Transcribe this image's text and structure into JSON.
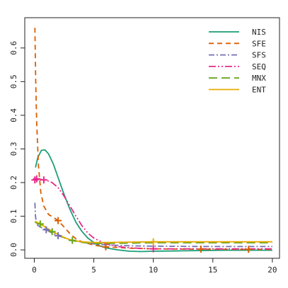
{
  "chart_data": {
    "type": "line",
    "title": "",
    "xlabel": "",
    "ylabel": "",
    "xlim": [
      -0.8,
      20.6
    ],
    "ylim": [
      -0.025,
      0.69
    ],
    "x_ticks": [
      0,
      5,
      10,
      15,
      20
    ],
    "y_ticks": [
      0.0,
      0.1,
      0.2,
      0.3,
      0.4,
      0.5,
      0.6
    ],
    "x_tick_labels": [
      "0",
      "5",
      "10",
      "15",
      "20"
    ],
    "y_tick_labels": [
      "0.0",
      "0.1",
      "0.2",
      "0.3",
      "0.4",
      "0.5",
      "0.6"
    ],
    "grid": false,
    "legend_position": "top-right",
    "series": [
      {
        "name": "NIS",
        "color": "#1b9e77",
        "dash": "solid",
        "points": [
          [
            0.1,
            0.245
          ],
          [
            0.3,
            0.275
          ],
          [
            0.6,
            0.296
          ],
          [
            0.9,
            0.297
          ],
          [
            1.2,
            0.285
          ],
          [
            1.6,
            0.255
          ],
          [
            2.0,
            0.215
          ],
          [
            2.5,
            0.165
          ],
          [
            3.0,
            0.12
          ],
          [
            3.5,
            0.082
          ],
          [
            4.0,
            0.055
          ],
          [
            4.5,
            0.035
          ],
          [
            5.0,
            0.022
          ],
          [
            5.5,
            0.012
          ],
          [
            6.0,
            0.006
          ],
          [
            7.0,
            0.0
          ],
          [
            8.0,
            -0.004
          ],
          [
            9.0,
            -0.005
          ],
          [
            10.0,
            -0.004
          ],
          [
            12.0,
            -0.003
          ],
          [
            14.0,
            -0.002
          ],
          [
            16.0,
            -0.001
          ],
          [
            18.0,
            -0.001
          ],
          [
            20.0,
            -0.001
          ]
        ],
        "markers": []
      },
      {
        "name": "SFE",
        "color": "#d95f02",
        "dash": "7,5",
        "points": [
          [
            0.05,
            0.66
          ],
          [
            0.12,
            0.5
          ],
          [
            0.2,
            0.38
          ],
          [
            0.35,
            0.25
          ],
          [
            0.55,
            0.17
          ],
          [
            0.8,
            0.13
          ],
          [
            1.2,
            0.105
          ],
          [
            1.6,
            0.097
          ],
          [
            2.0,
            0.087
          ],
          [
            2.5,
            0.068
          ],
          [
            3.0,
            0.048
          ],
          [
            3.5,
            0.033
          ],
          [
            4.0,
            0.024
          ],
          [
            5.0,
            0.014
          ],
          [
            6.0,
            0.009
          ],
          [
            8.0,
            0.005
          ],
          [
            10.0,
            0.003
          ],
          [
            14.0,
            0.002
          ],
          [
            18.0,
            0.0015
          ],
          [
            20.0,
            0.0015
          ]
        ],
        "markers": [
          [
            2.0,
            0.087
          ],
          [
            6.0,
            0.009
          ],
          [
            14.0,
            0.002
          ],
          [
            18.0,
            0.0015
          ]
        ]
      },
      {
        "name": "SFS",
        "color": "#7570b3",
        "dash": "8,3,2,3",
        "points": [
          [
            0.05,
            0.14
          ],
          [
            0.1,
            0.1
          ],
          [
            0.2,
            0.075
          ],
          [
            0.5,
            0.068
          ],
          [
            1.0,
            0.06
          ],
          [
            1.5,
            0.05
          ],
          [
            2.0,
            0.042
          ],
          [
            3.0,
            0.03
          ],
          [
            4.0,
            0.023
          ],
          [
            5.0,
            0.018
          ],
          [
            6.0,
            0.015
          ],
          [
            8.0,
            0.012
          ],
          [
            10.0,
            0.011
          ],
          [
            14.0,
            0.01
          ],
          [
            18.0,
            0.01
          ],
          [
            20.0,
            0.01
          ]
        ],
        "markers": [
          [
            1.0,
            0.06
          ],
          [
            2.0,
            0.042
          ]
        ]
      },
      {
        "name": "SEQ",
        "color": "#e7298a",
        "dash": "10,3,2,3,2,3",
        "points": [
          [
            0.05,
            0.208
          ],
          [
            0.5,
            0.21
          ],
          [
            1.0,
            0.207
          ],
          [
            1.5,
            0.2
          ],
          [
            2.0,
            0.185
          ],
          [
            2.5,
            0.16
          ],
          [
            3.0,
            0.13
          ],
          [
            3.5,
            0.1
          ],
          [
            4.0,
            0.072
          ],
          [
            4.5,
            0.05
          ],
          [
            5.0,
            0.035
          ],
          [
            6.0,
            0.018
          ],
          [
            7.0,
            0.01
          ],
          [
            8.0,
            0.006
          ],
          [
            10.0,
            0.003
          ],
          [
            14.0,
            0.003
          ],
          [
            18.0,
            0.003
          ],
          [
            20.0,
            0.003
          ]
        ],
        "markers": [
          [
            0.05,
            0.208
          ],
          [
            0.2,
            0.211
          ],
          [
            0.8,
            0.208
          ],
          [
            10.0,
            0.003
          ]
        ]
      },
      {
        "name": "MNX",
        "color": "#66a61e",
        "dash": "12,6",
        "points": [
          [
            0.05,
            0.082
          ],
          [
            0.5,
            0.077
          ],
          [
            1.0,
            0.065
          ],
          [
            1.5,
            0.054
          ],
          [
            2.0,
            0.045
          ],
          [
            2.5,
            0.036
          ],
          [
            3.0,
            0.029
          ],
          [
            4.0,
            0.022
          ],
          [
            5.0,
            0.019
          ],
          [
            6.0,
            0.019
          ],
          [
            8.0,
            0.02
          ],
          [
            10.0,
            0.021
          ],
          [
            14.0,
            0.021
          ],
          [
            18.0,
            0.021
          ],
          [
            20.0,
            0.021
          ]
        ],
        "markers": [
          [
            0.5,
            0.077
          ],
          [
            1.5,
            0.054
          ],
          [
            3.2,
            0.028
          ]
        ]
      },
      {
        "name": "ENT",
        "color": "#e6ab02",
        "dash": "solid",
        "points": [
          [
            0.05,
            0.085
          ],
          [
            0.5,
            0.078
          ],
          [
            1.0,
            0.066
          ],
          [
            1.5,
            0.055
          ],
          [
            2.0,
            0.046
          ],
          [
            2.5,
            0.037
          ],
          [
            3.0,
            0.03
          ],
          [
            4.0,
            0.024
          ],
          [
            5.0,
            0.022
          ],
          [
            6.0,
            0.022
          ],
          [
            8.0,
            0.023
          ],
          [
            10.0,
            0.024
          ],
          [
            14.0,
            0.024
          ],
          [
            18.0,
            0.024
          ],
          [
            20.0,
            0.024
          ]
        ],
        "markers": [
          [
            10.0,
            0.024
          ]
        ]
      }
    ]
  }
}
